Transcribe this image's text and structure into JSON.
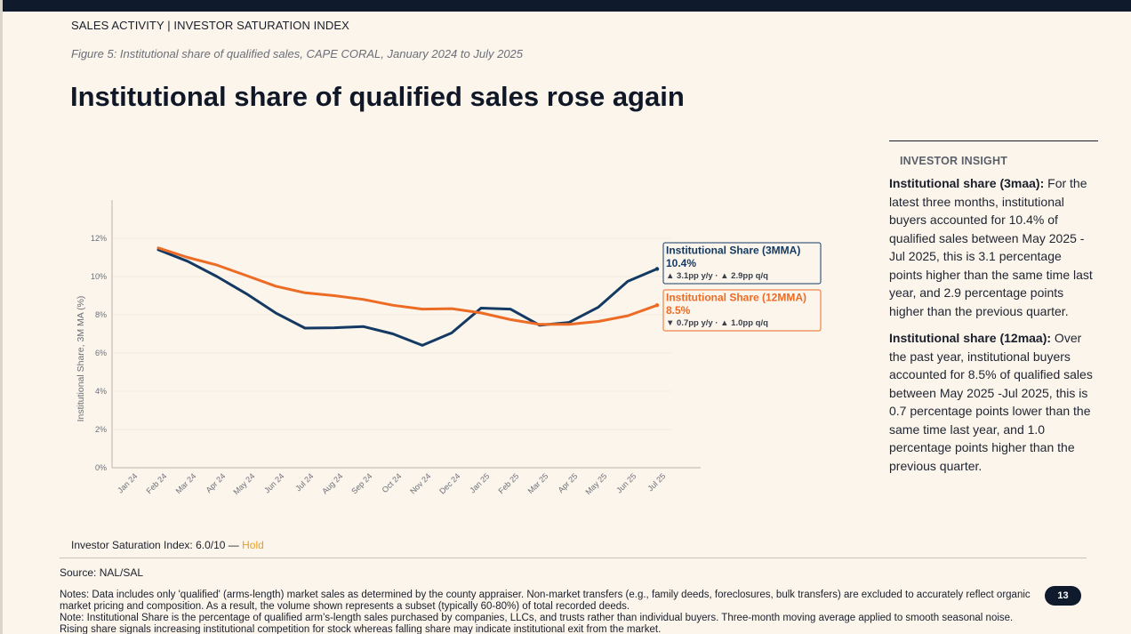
{
  "header": {
    "section": "SALES ACTIVITY | INVESTOR SATURATION INDEX",
    "figure_caption": "Figure 5: Institutional share of qualified sales, CAPE CORAL, January 2024 to July 2025",
    "title": "Institutional share of qualified sales rose again"
  },
  "chart_data": {
    "type": "line",
    "title": "",
    "xlabel": "",
    "ylabel": "Institutional Share, 3M MA (%)",
    "ylim": [
      0,
      14
    ],
    "yticks": [
      "0%",
      "2%",
      "4%",
      "6%",
      "8%",
      "10%",
      "12%"
    ],
    "ytick_values": [
      0,
      2,
      4,
      6,
      8,
      10,
      12
    ],
    "categories": [
      "Jan 24",
      "Feb 24",
      "Mar 24",
      "Apr 24",
      "May 24",
      "Jun 24",
      "Jul 24",
      "Aug 24",
      "Sep 24",
      "Oct 24",
      "Nov 24",
      "Dec 24",
      "Jan 25",
      "Feb 25",
      "Mar 25",
      "Apr 25",
      "May 25",
      "Jun 25",
      "Jul 25"
    ],
    "grid": true,
    "series": [
      {
        "name": "Institutional Share (3MMA)",
        "color": "#143a63",
        "values": [
          null,
          11.4,
          10.8,
          10.0,
          9.1,
          8.1,
          7.3,
          7.32,
          7.38,
          7.0,
          6.4,
          7.05,
          8.35,
          8.3,
          7.45,
          7.6,
          8.4,
          9.75,
          10.4
        ],
        "label_value": "10.4%",
        "change": "▲ 3.1pp y/y · ▲ 2.9pp q/q"
      },
      {
        "name": "Institutional Share (12MMA)",
        "color": "#ec6b25",
        "values": [
          null,
          11.5,
          11.0,
          10.6,
          10.05,
          9.5,
          9.15,
          9.0,
          8.8,
          8.5,
          8.3,
          8.32,
          8.1,
          7.75,
          7.5,
          7.5,
          7.65,
          7.95,
          8.5
        ],
        "label_value": "8.5%",
        "change": "▼ 0.7pp y/y · ▲ 1.0pp q/q"
      }
    ]
  },
  "sidebar": {
    "heading": "INVESTOR INSIGHT",
    "p1_label": "Institutional share (3maa):",
    "p1_text": " For the latest three months, institutional buyers accounted for 10.4% of qualified sales between May 2025 -Jul 2025, this is 3.1 percentage points higher than the same time last year, and 2.9 percentage points higher than the previous quarter.",
    "p2_label": "Institutional share (12maa):",
    "p2_text": " Over the past year, institutional buyers accounted for 8.5% of qualified sales between May 2025 -Jul 2025, this is 0.7 percentage points lower than the same time last year, and 1.0 percentage points higher than the previous quarter."
  },
  "footer": {
    "isi_label": "Investor Saturation Index: 6.0/10 — ",
    "isi_status": "Hold",
    "isi_color": "#e8a020",
    "source": "Source: NAL/SAL",
    "notes1": "Notes: Data includes only 'qualified' (arms-length) market sales as determined by the county appraiser. Non-market transfers (e.g., family deeds, foreclosures, bulk transfers) are excluded to accurately reflect organic market pricing and composition. As a result, the volume shown represents a subset (typically 60-80%) of total recorded deeds.",
    "notes2": "Note: Institutional Share is the percentage of qualified arm’s-length sales purchased by companies, LLCs, and trusts rather than individual buyers. Three-month moving average applied to smooth seasonal noise. Rising share signals increasing institutional competition for stock whereas falling share may indicate institutional exit from the market.",
    "page_number": "13"
  }
}
